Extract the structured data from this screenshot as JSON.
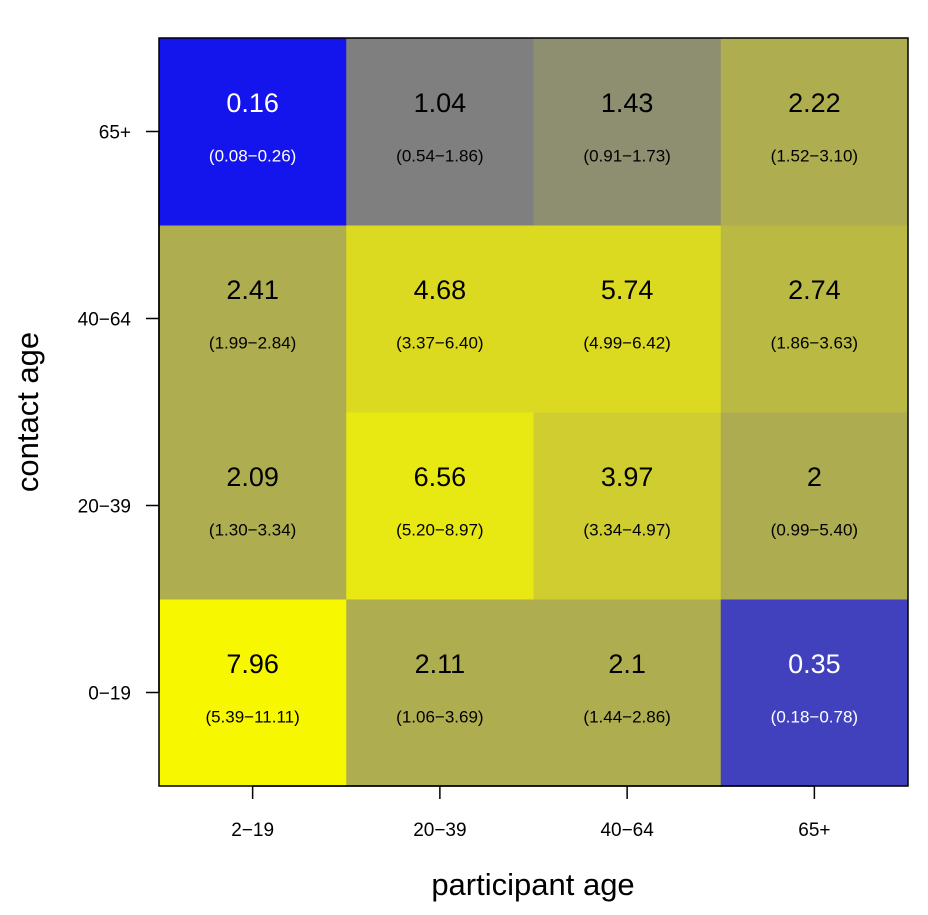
{
  "chart_data": {
    "type": "heatmap",
    "title": "",
    "xlabel": "participant age",
    "ylabel": "contact age",
    "x_categories": [
      "2−19",
      "20−39",
      "40−64",
      "65+"
    ],
    "y_categories": [
      "0−19",
      "20−39",
      "40−64",
      "65+"
    ],
    "cells": [
      {
        "x": "2−19",
        "y": "0−19",
        "value": "7.96",
        "ci": "(5.39−11.11)",
        "color": "#f7f700",
        "text_color": "#000000"
      },
      {
        "x": "20−39",
        "y": "0−19",
        "value": "2.11",
        "ci": "(1.06−3.69)",
        "color": "#aead4f",
        "text_color": "#000000"
      },
      {
        "x": "40−64",
        "y": "0−19",
        "value": "2.1",
        "ci": "(1.44−2.86)",
        "color": "#aead4f",
        "text_color": "#000000"
      },
      {
        "x": "65+",
        "y": "0−19",
        "value": "0.35",
        "ci": "(0.18−0.78)",
        "color": "#4141bd",
        "text_color": "#ffffff"
      },
      {
        "x": "2−19",
        "y": "20−39",
        "value": "2.09",
        "ci": "(1.30−3.34)",
        "color": "#aead4f",
        "text_color": "#000000"
      },
      {
        "x": "20−39",
        "y": "20−39",
        "value": "6.56",
        "ci": "(5.20−8.97)",
        "color": "#e8e812",
        "text_color": "#000000"
      },
      {
        "x": "40−64",
        "y": "20−39",
        "value": "3.97",
        "ci": "(3.34−4.97)",
        "color": "#cfcd30",
        "text_color": "#000000"
      },
      {
        "x": "65+",
        "y": "20−39",
        "value": "2",
        "ci": "(0.99−5.40)",
        "color": "#adac51",
        "text_color": "#000000"
      },
      {
        "x": "2−19",
        "y": "40−64",
        "value": "2.41",
        "ci": "(1.99−2.84)",
        "color": "#aead4f",
        "text_color": "#000000"
      },
      {
        "x": "20−39",
        "y": "40−64",
        "value": "4.68",
        "ci": "(3.37−6.40)",
        "color": "#dbda21",
        "text_color": "#000000"
      },
      {
        "x": "40−64",
        "y": "40−64",
        "value": "5.74",
        "ci": "(4.99−6.42)",
        "color": "#dbda21",
        "text_color": "#000000"
      },
      {
        "x": "65+",
        "y": "40−64",
        "value": "2.74",
        "ci": "(1.86−3.63)",
        "color": "#bab943",
        "text_color": "#000000"
      },
      {
        "x": "2−19",
        "y": "65+",
        "value": "0.16",
        "ci": "(0.08−0.26)",
        "color": "#1414ec",
        "text_color": "#ffffff"
      },
      {
        "x": "20−39",
        "y": "65+",
        "value": "1.04",
        "ci": "(0.54−1.86)",
        "color": "#7f7f7f",
        "text_color": "#000000"
      },
      {
        "x": "40−64",
        "y": "65+",
        "value": "1.43",
        "ci": "(0.91−1.73)",
        "color": "#8e8e70",
        "text_color": "#000000"
      },
      {
        "x": "65+",
        "y": "65+",
        "value": "2.22",
        "ci": "(1.52−3.10)",
        "color": "#aead4f",
        "text_color": "#000000"
      }
    ],
    "grid": false,
    "legend": "none"
  }
}
